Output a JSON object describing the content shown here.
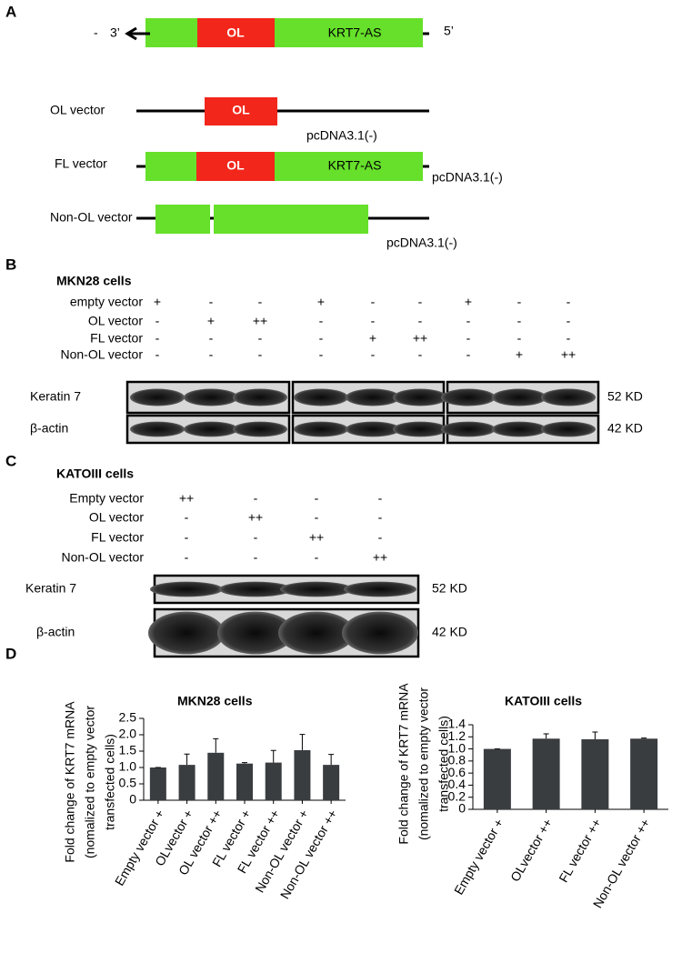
{
  "panel_a": {
    "label": "A",
    "top": {
      "left_dash": "-",
      "left_end": "3’",
      "overlap": "OL",
      "gene": "KRT7-AS",
      "right_end": "5’"
    },
    "vectors": [
      {
        "name": "OL vector",
        "insert": "OL",
        "backbone": "pcDNA3.1(-)"
      },
      {
        "name": "FL vector",
        "insert": "OL",
        "gene": "KRT7-AS",
        "backbone": "pcDNA3.1(-)"
      },
      {
        "name": "Non-OL vector",
        "backbone": "pcDNA3.1(-)"
      }
    ]
  },
  "panel_b": {
    "label": "B",
    "cells": "MKN28 cells",
    "rows": [
      {
        "label": "empty vector",
        "signs": [
          "+",
          "-",
          "-",
          "+",
          "-",
          "-",
          "+",
          "-",
          "-"
        ]
      },
      {
        "label": "OL vector",
        "signs": [
          "-",
          "+",
          "++",
          "-",
          "-",
          "-",
          "-",
          "-",
          "-"
        ]
      },
      {
        "label": "FL vector",
        "signs": [
          "-",
          "-",
          "-",
          "-",
          "+",
          "++",
          "-",
          "-",
          "-"
        ]
      },
      {
        "label": "Non-OL vector",
        "signs": [
          "-",
          "-",
          "-",
          "-",
          "-",
          "-",
          "-",
          "+",
          "++"
        ]
      }
    ],
    "blots": [
      {
        "name": "Keratin 7",
        "size": "52 KD"
      },
      {
        "name": "β-actin",
        "size": "42 KD"
      }
    ]
  },
  "panel_c": {
    "label": "C",
    "cells": "KATOIII cells",
    "rows": [
      {
        "label": "Empty vector",
        "signs": [
          "++",
          "-",
          "-",
          "-"
        ]
      },
      {
        "label": "OL vector",
        "signs": [
          "-",
          "++",
          "-",
          "-"
        ]
      },
      {
        "label": "FL vector",
        "signs": [
          "-",
          "-",
          "++",
          "-"
        ]
      },
      {
        "label": "Non-OL vector",
        "signs": [
          "-",
          "-",
          "-",
          "++"
        ]
      }
    ],
    "blots": [
      {
        "name": "Keratin 7",
        "size": "52 KD"
      },
      {
        "name": "β-actin",
        "size": "42 KD"
      }
    ]
  },
  "panel_d": {
    "label": "D"
  },
  "chart_data": [
    {
      "type": "bar",
      "title": "MKN28 cells",
      "ylabel": [
        "Fold change of KRT7 mRNA",
        "(nomalized to empty vector",
        "transfected cells)"
      ],
      "categories": [
        "Empty vector +",
        "OLvector +",
        "OL vector ++",
        "FL vector +",
        "FL vector ++",
        "Non-OL vector +",
        "Non-OL vector ++"
      ],
      "values": [
        1.0,
        1.08,
        1.45,
        1.12,
        1.15,
        1.53,
        1.08
      ],
      "errors": [
        0,
        0.33,
        0.43,
        0.03,
        0.37,
        0.48,
        0.32
      ],
      "color": "#3a3d40",
      "ylim": [
        0,
        2.5
      ],
      "yticks": [
        0,
        0.5,
        {
          "value": 1,
          "label": "1.0"
        },
        1.5,
        {
          "value": 2,
          "label": "2.0"
        },
        2.5
      ]
    },
    {
      "type": "bar",
      "title": "KATOIII cells",
      "ylabel": [
        "Fold change of KRT7 mRNA",
        "(nomalized to empty vector",
        "transfected cells)"
      ],
      "categories": [
        "Empty vector +",
        "OLvector ++",
        "FL vector ++",
        "Non-OL vector ++"
      ],
      "values": [
        1.0,
        1.17,
        1.16,
        1.17
      ],
      "errors": [
        0,
        0.08,
        0.12,
        0.01
      ],
      "color": "#3a3d40",
      "ylim": [
        0,
        1.4
      ],
      "yticks": [
        0,
        0.2,
        0.4,
        0.6,
        0.8,
        {
          "value": 1,
          "label": "1.0"
        },
        1.2,
        1.4
      ]
    }
  ]
}
